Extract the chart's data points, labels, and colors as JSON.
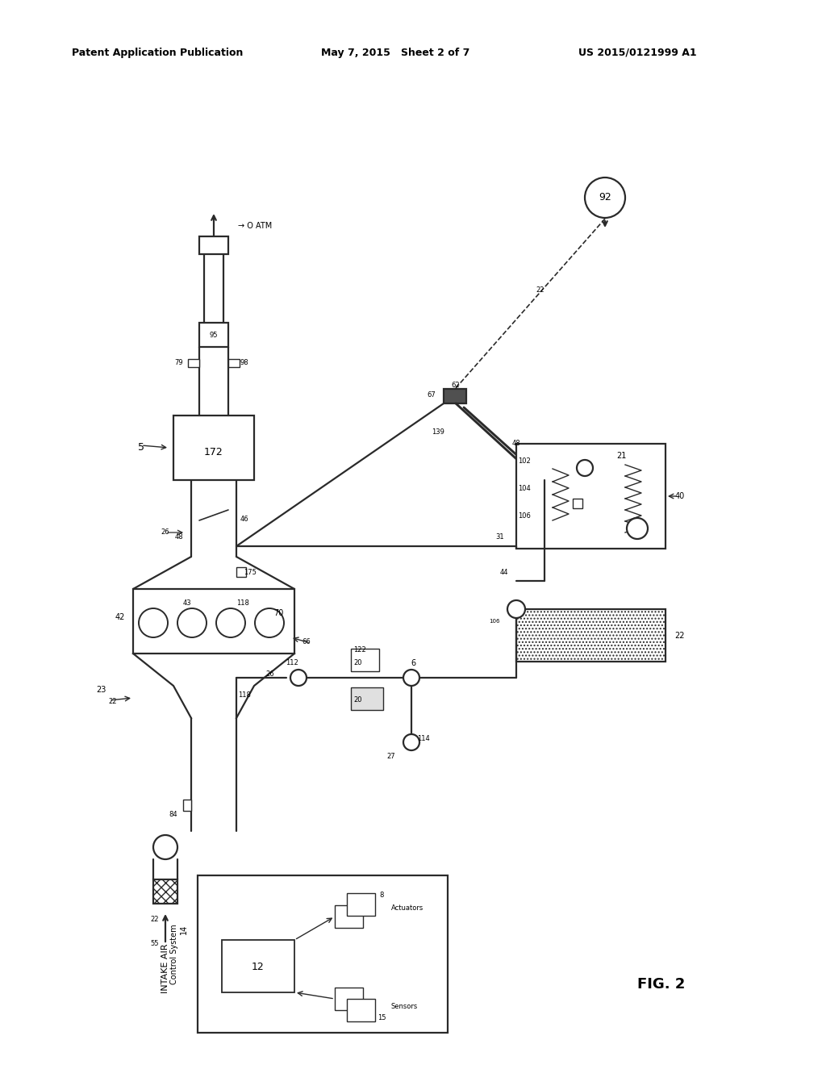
{
  "bg_color": "#ffffff",
  "lc": "#2a2a2a",
  "header_left": "Patent Application Publication",
  "header_mid": "May 7, 2015   Sheet 2 of 7",
  "header_right": "US 2015/0121999 A1",
  "fig_label": "FIG. 2"
}
